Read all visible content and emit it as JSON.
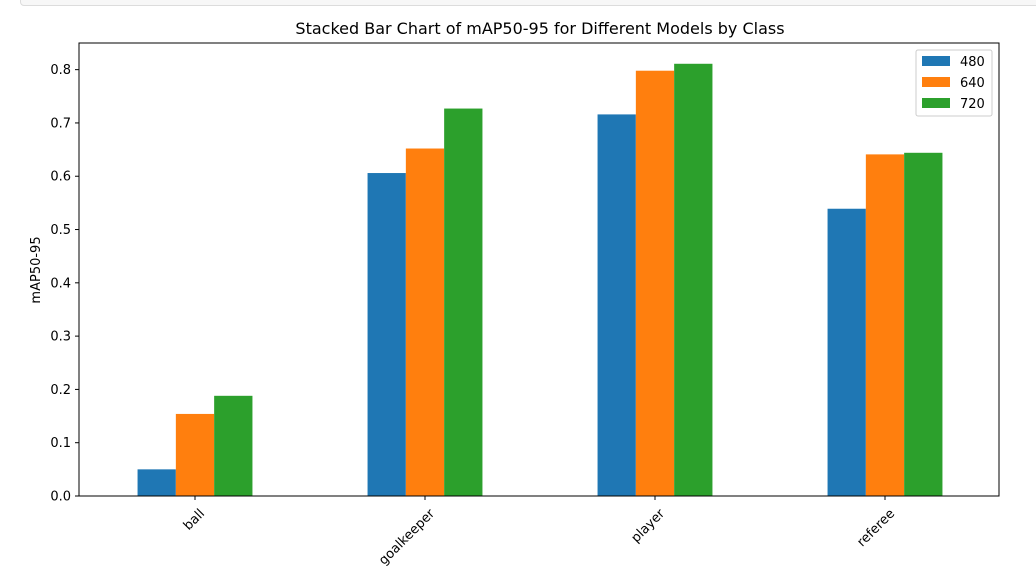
{
  "chart_data": {
    "type": "bar",
    "title": "Stacked Bar Chart of mAP50-95 for Different Models by Class",
    "xlabel": "",
    "ylabel": "mAP50-95",
    "categories": [
      "ball",
      "goalkeeper",
      "player",
      "referee"
    ],
    "series": [
      {
        "name": "480",
        "color": "#1f77b4",
        "values": [
          0.05,
          0.606,
          0.716,
          0.539
        ]
      },
      {
        "name": "640",
        "color": "#ff7f0e",
        "values": [
          0.154,
          0.652,
          0.798,
          0.641
        ]
      },
      {
        "name": "720",
        "color": "#2ca02c",
        "values": [
          0.188,
          0.727,
          0.811,
          0.644
        ]
      }
    ],
    "ylim": [
      0,
      0.85
    ],
    "yticks": [
      "0.0",
      "0.1",
      "0.2",
      "0.3",
      "0.4",
      "0.5",
      "0.6",
      "0.7",
      "0.8"
    ],
    "legend": "top-right",
    "grid": false
  }
}
